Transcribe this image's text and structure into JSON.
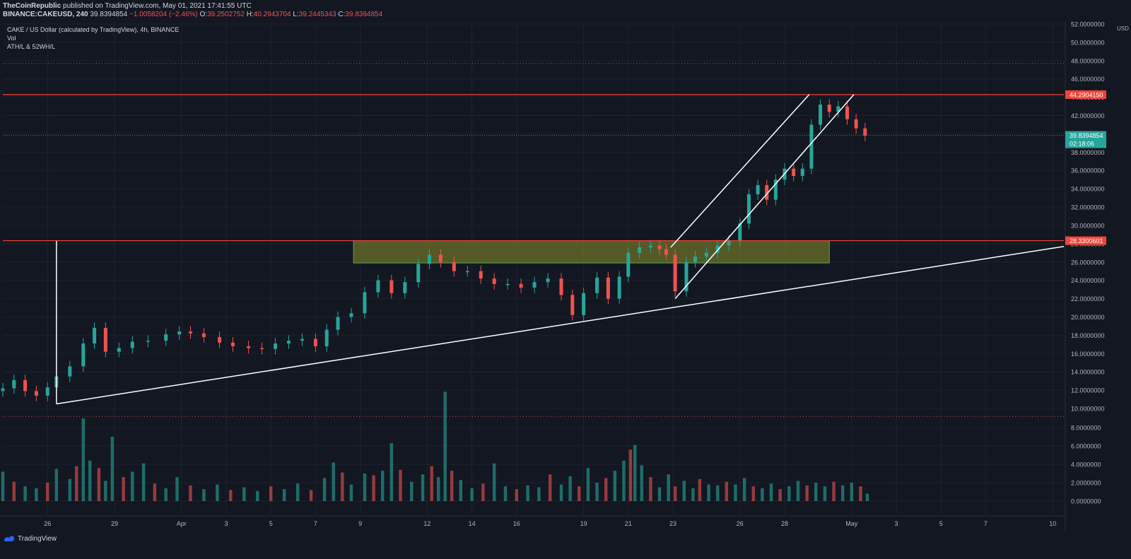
{
  "header": {
    "author": "TheCoinRepublic",
    "published": "published on TradingView.com, May 01, 2021 17:41:55 UTC",
    "symbol": "BINANCE:CAKEUSD, 240",
    "price": "39.8394854",
    "change": "−1.0058204 (−2.46%)",
    "o_label": "O:",
    "o_value": "39.2502752",
    "h_label": "H:",
    "h_value": "40.2943704",
    "l_label": "L:",
    "l_value": "39.2445343",
    "c_label": "C:",
    "c_value": "39.8394854"
  },
  "legend": {
    "line1": "CAKE / US Dollar (calculated by TradingView), 4h, BINANCE",
    "line2": "Vol",
    "line3": "ATH/L & 52WH/L"
  },
  "footer": {
    "brand": "TradingView"
  },
  "colors": {
    "background": "#131722",
    "up": "#26a69a",
    "down": "#ef5350",
    "level": "#f44336",
    "zone_fill": "#8a8f2a",
    "zone_border": "#4caf50",
    "trendline": "#ffffff",
    "price_badge": "#26a69a",
    "grid": "#1e222d"
  },
  "chart_data": {
    "type": "candlestick",
    "title": "CAKE / US Dollar (calculated by TradingView), 4h, BINANCE",
    "currency_label": "USD",
    "y_ticks": [
      "52.0000000",
      "50.0000000",
      "48.0000000",
      "46.0000000",
      "44.0000000",
      "42.0000000",
      "40.0000000",
      "38.0000000",
      "36.0000000",
      "34.0000000",
      "32.0000000",
      "30.0000000",
      "28.0000000",
      "26.0000000",
      "24.0000000",
      "22.0000000",
      "20.0000000",
      "18.0000000",
      "16.0000000",
      "14.0000000",
      "12.0000000",
      "10.0000000",
      "8.0000000",
      "6.0000000",
      "4.0000000",
      "2.0000000",
      "0.0000000"
    ],
    "price_ylim": [
      10,
      52
    ],
    "x_ticks": [
      "26",
      "29",
      "Apr",
      "3",
      "5",
      "7",
      "9",
      "12",
      "14",
      "16",
      "19",
      "21",
      "23",
      "26",
      "28",
      "May",
      "3",
      "5",
      "7",
      "10"
    ],
    "x_tick_days": [
      26,
      29,
      32,
      34,
      36,
      38,
      40,
      43,
      45,
      47,
      50,
      52,
      54,
      57,
      59,
      62,
      64,
      66,
      68,
      71
    ],
    "x_day_range": [
      24,
      71.5
    ],
    "x_day_note": "day index: 1 = Mar 1 2021",
    "levels": [
      {
        "value": 44.290415,
        "label": "44.2904150"
      },
      {
        "value": 28.3300601,
        "label": "28.3300601"
      }
    ],
    "current_price": {
      "value": 39.8394854,
      "label": "39.8394854",
      "countdown": "02:18:06"
    },
    "ath_52w_lines": [
      47.7,
      9.2
    ],
    "support_zone": {
      "from_day": 39.7,
      "to_day": 61.0,
      "low": 25.9,
      "high": 28.33
    },
    "trendlines": [
      {
        "name": "long support",
        "points": [
          [
            26.4,
            10.5
          ],
          [
            71.5,
            27.7
          ]
        ]
      },
      {
        "name": "left vertical",
        "points": [
          [
            26.4,
            10.5
          ],
          [
            26.4,
            28.3
          ]
        ]
      },
      {
        "name": "channel lower",
        "points": [
          [
            54.1,
            22.0
          ],
          [
            62.1,
            44.3
          ]
        ]
      },
      {
        "name": "channel upper",
        "points": [
          [
            53.9,
            27.6
          ],
          [
            60.1,
            44.3
          ]
        ]
      }
    ],
    "price_series": [
      [
        24.0,
        12.2
      ],
      [
        24.5,
        13.1
      ],
      [
        25.0,
        11.9
      ],
      [
        25.5,
        11.4
      ],
      [
        26.0,
        12.3
      ],
      [
        26.4,
        13.5
      ],
      [
        27.0,
        14.6
      ],
      [
        27.6,
        17.1
      ],
      [
        28.1,
        18.8
      ],
      [
        28.6,
        16.2
      ],
      [
        29.2,
        16.6
      ],
      [
        29.8,
        17.3
      ],
      [
        30.5,
        17.4
      ],
      [
        31.3,
        18.1
      ],
      [
        31.9,
        18.4
      ],
      [
        32.4,
        18.2
      ],
      [
        33.0,
        17.8
      ],
      [
        33.7,
        17.2
      ],
      [
        34.3,
        16.8
      ],
      [
        35.0,
        16.6
      ],
      [
        35.6,
        16.5
      ],
      [
        36.2,
        17.1
      ],
      [
        36.8,
        17.4
      ],
      [
        37.4,
        17.6
      ],
      [
        38.0,
        16.8
      ],
      [
        38.5,
        18.6
      ],
      [
        39.0,
        20.0
      ],
      [
        39.6,
        20.4
      ],
      [
        40.2,
        22.7
      ],
      [
        40.8,
        24.0
      ],
      [
        41.4,
        22.6
      ],
      [
        42.0,
        23.8
      ],
      [
        42.6,
        25.8
      ],
      [
        43.1,
        26.8
      ],
      [
        43.6,
        26.0
      ],
      [
        44.2,
        25.0
      ],
      [
        44.8,
        25.0
      ],
      [
        45.4,
        24.2
      ],
      [
        46.0,
        23.6
      ],
      [
        46.6,
        23.6
      ],
      [
        47.2,
        23.2
      ],
      [
        47.8,
        23.8
      ],
      [
        48.4,
        24.2
      ],
      [
        49.0,
        22.4
      ],
      [
        49.5,
        20.2
      ],
      [
        50.0,
        22.6
      ],
      [
        50.6,
        24.3
      ],
      [
        51.1,
        22.0
      ],
      [
        51.6,
        24.4
      ],
      [
        52.0,
        27.0
      ],
      [
        52.5,
        27.6
      ],
      [
        53.0,
        27.8
      ],
      [
        53.4,
        27.4
      ],
      [
        53.7,
        26.8
      ],
      [
        54.1,
        22.8
      ],
      [
        54.6,
        26.0
      ],
      [
        55.0,
        26.6
      ],
      [
        55.5,
        27.0
      ],
      [
        56.0,
        27.8
      ],
      [
        56.5,
        28.3
      ],
      [
        57.0,
        30.2
      ],
      [
        57.4,
        33.4
      ],
      [
        57.8,
        34.4
      ],
      [
        58.2,
        32.8
      ],
      [
        58.6,
        35.0
      ],
      [
        59.0,
        36.2
      ],
      [
        59.4,
        35.4
      ],
      [
        59.8,
        36.2
      ],
      [
        60.2,
        41.0
      ],
      [
        60.6,
        43.2
      ],
      [
        61.0,
        42.4
      ],
      [
        61.4,
        43.0
      ],
      [
        61.8,
        41.6
      ],
      [
        62.2,
        40.6
      ],
      [
        62.6,
        39.8
      ]
    ],
    "volume_ylim": [
      0,
      9.8
    ],
    "volume_series": [
      [
        24.0,
        3.2
      ],
      [
        24.5,
        2.1
      ],
      [
        25.0,
        1.6
      ],
      [
        25.5,
        1.4
      ],
      [
        26.0,
        2.0
      ],
      [
        26.4,
        3.5
      ],
      [
        27.0,
        2.4
      ],
      [
        27.3,
        3.8
      ],
      [
        27.6,
        9.0
      ],
      [
        27.9,
        4.4
      ],
      [
        28.3,
        3.6
      ],
      [
        28.6,
        2.2
      ],
      [
        28.9,
        7.0
      ],
      [
        29.4,
        2.6
      ],
      [
        29.8,
        3.2
      ],
      [
        30.3,
        4.1
      ],
      [
        30.8,
        1.9
      ],
      [
        31.3,
        1.4
      ],
      [
        31.8,
        2.6
      ],
      [
        32.4,
        1.7
      ],
      [
        33.0,
        1.3
      ],
      [
        33.6,
        1.8
      ],
      [
        34.2,
        1.2
      ],
      [
        34.8,
        1.5
      ],
      [
        35.4,
        1.1
      ],
      [
        36.0,
        1.6
      ],
      [
        36.6,
        1.3
      ],
      [
        37.2,
        1.9
      ],
      [
        37.8,
        1.2
      ],
      [
        38.4,
        2.5
      ],
      [
        38.8,
        4.2
      ],
      [
        39.2,
        3.1
      ],
      [
        39.6,
        1.8
      ],
      [
        40.2,
        3.0
      ],
      [
        40.6,
        2.8
      ],
      [
        41.0,
        3.3
      ],
      [
        41.4,
        6.3
      ],
      [
        41.8,
        3.4
      ],
      [
        42.3,
        2.1
      ],
      [
        42.8,
        2.9
      ],
      [
        43.2,
        3.8
      ],
      [
        43.5,
        2.6
      ],
      [
        43.8,
        11.9
      ],
      [
        44.1,
        3.3
      ],
      [
        44.5,
        2.3
      ],
      [
        45.0,
        1.4
      ],
      [
        45.5,
        1.9
      ],
      [
        46.0,
        4.1
      ],
      [
        46.5,
        1.6
      ],
      [
        47.0,
        1.3
      ],
      [
        47.5,
        1.7
      ],
      [
        48.0,
        1.5
      ],
      [
        48.5,
        2.9
      ],
      [
        49.0,
        1.8
      ],
      [
        49.4,
        2.7
      ],
      [
        49.8,
        1.6
      ],
      [
        50.2,
        3.6
      ],
      [
        50.6,
        2.0
      ],
      [
        51.0,
        2.5
      ],
      [
        51.4,
        3.3
      ],
      [
        51.8,
        4.4
      ],
      [
        52.1,
        5.6
      ],
      [
        52.3,
        6.1
      ],
      [
        52.6,
        3.9
      ],
      [
        53.0,
        2.6
      ],
      [
        53.4,
        1.5
      ],
      [
        53.8,
        2.9
      ],
      [
        54.1,
        1.6
      ],
      [
        54.5,
        2.2
      ],
      [
        54.9,
        1.4
      ],
      [
        55.2,
        2.4
      ],
      [
        55.6,
        1.8
      ],
      [
        56.0,
        1.7
      ],
      [
        56.4,
        2.1
      ],
      [
        56.8,
        1.8
      ],
      [
        57.2,
        2.5
      ],
      [
        57.6,
        1.6
      ],
      [
        58.0,
        1.4
      ],
      [
        58.4,
        1.9
      ],
      [
        58.8,
        1.3
      ],
      [
        59.2,
        1.6
      ],
      [
        59.6,
        2.2
      ],
      [
        60.0,
        1.7
      ],
      [
        60.4,
        2.0
      ],
      [
        60.8,
        1.6
      ],
      [
        61.2,
        2.1
      ],
      [
        61.6,
        1.7
      ],
      [
        62.0,
        2.0
      ],
      [
        62.4,
        1.6
      ],
      [
        62.7,
        0.8
      ]
    ]
  }
}
